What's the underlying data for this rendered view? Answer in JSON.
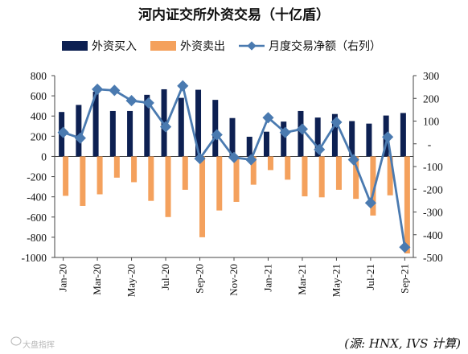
{
  "chart_data": {
    "type": "bar",
    "title": "河内证交所外资交易（十亿盾）",
    "categories": [
      "Jan-20",
      "Feb-20",
      "Mar-20",
      "Apr-20",
      "May-20",
      "Jun-20",
      "Jul-20",
      "Aug-20",
      "Sep-20",
      "Oct-20",
      "Nov-20",
      "Dec-20",
      "Jan-21",
      "Feb-21",
      "Mar-21",
      "Apr-21",
      "May-21",
      "Jun-21",
      "Jul-21",
      "Aug-21",
      "Sep-21"
    ],
    "x_tick_labels": [
      "Jan-20",
      "Mar-20",
      "May-20",
      "Jul-20",
      "Sep-20",
      "Nov-20",
      "Jan-21",
      "Mar-21",
      "May-21",
      "Jul-21",
      "Sep-21"
    ],
    "series": [
      {
        "name": "外资买入",
        "type": "bar",
        "axis": "left",
        "color": "#0d2052",
        "values": [
          440,
          510,
          640,
          450,
          450,
          610,
          665,
          580,
          660,
          560,
          380,
          195,
          245,
          345,
          450,
          385,
          420,
          350,
          325,
          405,
          430
        ]
      },
      {
        "name": "外资卖出",
        "type": "bar",
        "axis": "left",
        "color": "#f4a15d",
        "values": [
          -390,
          -490,
          -375,
          -210,
          -255,
          -440,
          -600,
          -330,
          -800,
          -535,
          -450,
          -280,
          -135,
          -230,
          -395,
          -405,
          -330,
          -420,
          -585,
          -385,
          -960
        ]
      },
      {
        "name": "月度交易净额（右列）",
        "type": "line",
        "axis": "right",
        "color": "#4a7ab0",
        "values": [
          50,
          25,
          240,
          235,
          190,
          180,
          75,
          255,
          -65,
          40,
          -60,
          -70,
          115,
          50,
          65,
          -25,
          95,
          -70,
          -260,
          30,
          -455
        ]
      }
    ],
    "y_left": {
      "min": -1000,
      "max": 800,
      "step": 200,
      "ticks": [
        "800",
        "600",
        "400",
        "200",
        "0",
        "-200",
        "-400",
        "-600",
        "-800",
        "-1000"
      ]
    },
    "y_right": {
      "min": -500,
      "max": 300,
      "step": 100,
      "ticks": [
        "300",
        "200",
        "100",
        "-",
        "-100",
        "-200",
        "-300",
        "-400",
        "-500"
      ]
    },
    "legend": {
      "position": "top"
    },
    "source_note": "(源: HNX, IVS 计算)",
    "watermark": "大盘指挥"
  }
}
